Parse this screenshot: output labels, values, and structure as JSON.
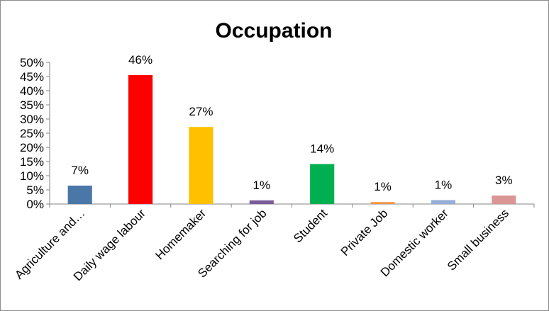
{
  "chart_data": {
    "type": "bar",
    "title": "Occupation",
    "xlabel": "",
    "ylabel": "",
    "ylim": [
      0,
      50
    ],
    "y_ticks": [
      "0%",
      "5%",
      "10%",
      "15%",
      "20%",
      "25%",
      "30%",
      "35%",
      "40%",
      "45%",
      "50%"
    ],
    "categories": [
      "Agriculture and…",
      "Daily wage labour",
      "Homemaker",
      "Searching for job",
      "Student",
      "Private Job",
      "Domestic worker",
      "Small business"
    ],
    "values": [
      6.5,
      45.5,
      27.2,
      1.3,
      14.1,
      0.7,
      1.4,
      3.0
    ],
    "data_labels": [
      "7%",
      "46%",
      "27%",
      "1%",
      "14%",
      "1%",
      "1%",
      "3%"
    ],
    "colors": [
      "#4a76a8",
      "#ff0000",
      "#ffc000",
      "#7a5c9a",
      "#00b050",
      "#f79646",
      "#95aed8",
      "#d99694"
    ],
    "grid": false,
    "legend": "none"
  }
}
